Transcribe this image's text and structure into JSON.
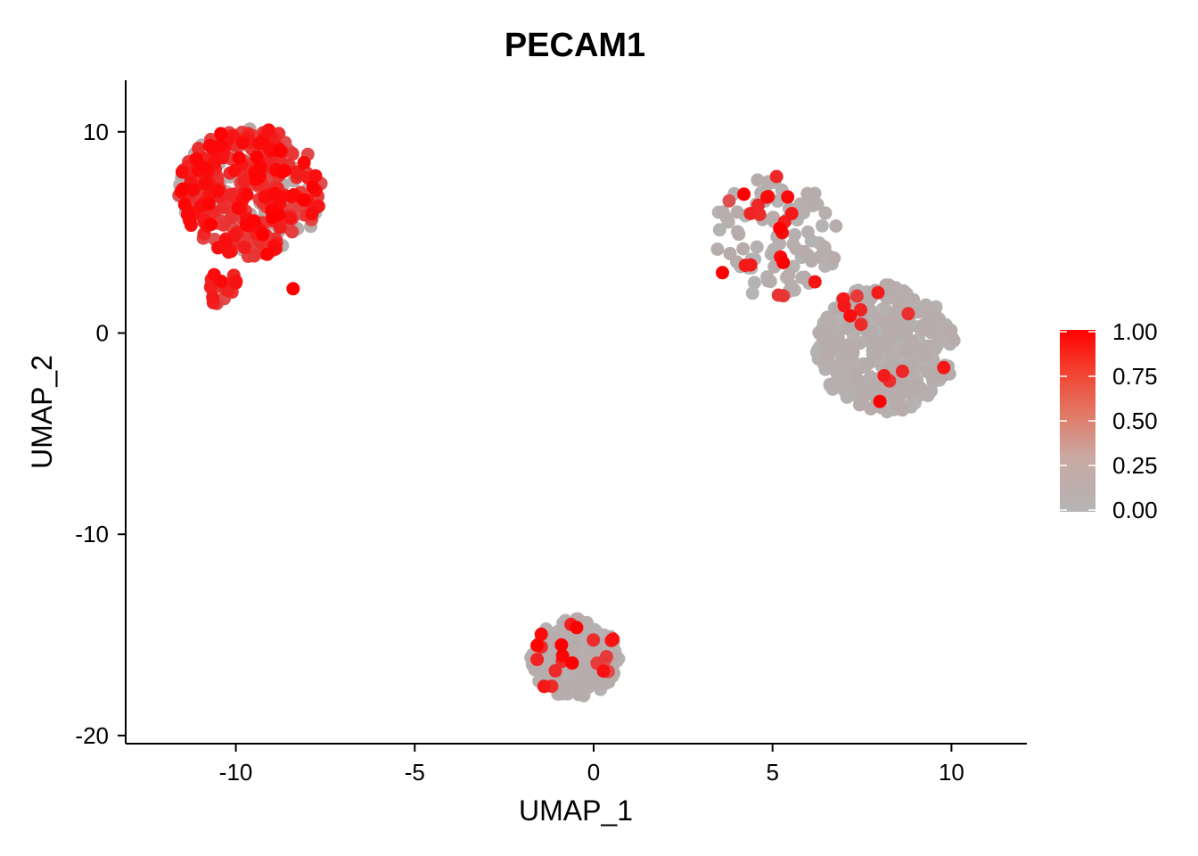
{
  "chart_data": {
    "type": "scatter",
    "title": "PECAM1",
    "xlabel": "UMAP_1",
    "ylabel": "UMAP_2",
    "xlim": [
      -13.1,
      12.1
    ],
    "ylim": [
      -20.4,
      12.5
    ],
    "xticks": [
      -10,
      -5,
      0,
      5,
      10
    ],
    "yticks": [
      -20,
      -10,
      0,
      10
    ],
    "grid": false,
    "legend": {
      "placement": "right",
      "labels": [
        "0.00",
        "0.25",
        "0.50",
        "0.75",
        "1.00"
      ],
      "values": [
        0,
        0.25,
        0.5,
        0.75,
        1
      ]
    },
    "color_low": "#b4b4b4",
    "color_high": "#ff0000",
    "clusters": [
      {
        "x_range": [
          -11.6,
          -7.6
        ],
        "y_range": [
          3.8,
          10.2
        ],
        "count": 420,
        "expr_fraction": 0.82
      },
      {
        "x_range": [
          -10.8,
          -9.9
        ],
        "y_range": [
          1.3,
          3.1
        ],
        "count": 18,
        "expr_fraction": 0.95
      },
      {
        "x_range": [
          3.2,
          6.9
        ],
        "y_range": [
          1.8,
          7.8
        ],
        "count": 110,
        "expr_fraction": 0.12
      },
      {
        "x_range": [
          6.2,
          10.1
        ],
        "y_range": [
          -4.0,
          2.4
        ],
        "count": 360,
        "expr_fraction": 0.05
      },
      {
        "x_range": [
          -1.8,
          0.7
        ],
        "y_range": [
          -18.1,
          -14.2
        ],
        "count": 230,
        "expr_fraction": 0.06
      }
    ],
    "points_highlight": [
      {
        "x": -8.4,
        "y": 2.2,
        "value": 1.0
      },
      {
        "x": -0.9,
        "y": -15.5,
        "value": 1.0
      },
      {
        "x": -0.6,
        "y": -16.4,
        "value": 1.0
      },
      {
        "x": 5.2,
        "y": 5.2,
        "value": 1.0
      },
      {
        "x": 4.2,
        "y": 6.9,
        "value": 1.0
      },
      {
        "x": 8.0,
        "y": -3.4,
        "value": 1.0
      },
      {
        "x": 3.6,
        "y": 3.0,
        "value": 1.0
      },
      {
        "x": 5.3,
        "y": 3.5,
        "value": 1.0
      }
    ]
  }
}
